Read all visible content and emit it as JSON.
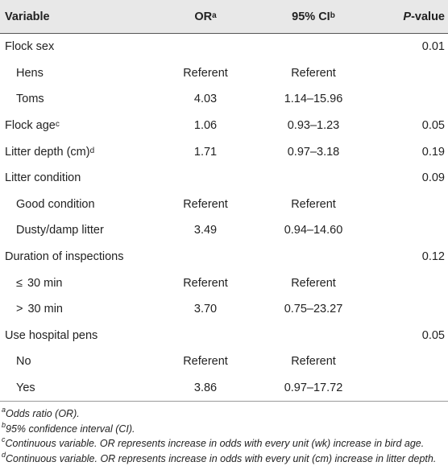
{
  "table": {
    "headers": {
      "variable": "Variable",
      "or": "OR",
      "or_sup": "a",
      "ci": "95% CI",
      "ci_sup": "b",
      "p_italic": "P",
      "p_rest": "-value"
    },
    "rows": [
      {
        "variable": "Flock sex",
        "indent": false,
        "sup": "",
        "or": "",
        "ci": "",
        "p": "0.01"
      },
      {
        "variable": "Hens",
        "indent": true,
        "sup": "",
        "or": "Referent",
        "ci": "Referent",
        "p": ""
      },
      {
        "variable": "Toms",
        "indent": true,
        "sup": "",
        "or": "4.03",
        "ci": "1.14–15.96",
        "p": ""
      },
      {
        "variable": "Flock age",
        "indent": false,
        "sup": "c",
        "or": "1.06",
        "ci": "0.93–1.23",
        "p": "0.05"
      },
      {
        "variable": "Litter depth (cm)",
        "indent": false,
        "sup": "d",
        "or": "1.71",
        "ci": "0.97–3.18",
        "p": "0.19"
      },
      {
        "variable": "Litter condition",
        "indent": false,
        "sup": "",
        "or": "",
        "ci": "",
        "p": "0.09"
      },
      {
        "variable": "Good condition",
        "indent": true,
        "sup": "",
        "or": "Referent",
        "ci": "Referent",
        "p": ""
      },
      {
        "variable": "Dusty/damp litter",
        "indent": true,
        "sup": "",
        "or": "3.49",
        "ci": "0.94–14.60",
        "p": ""
      },
      {
        "variable": "Duration of inspections",
        "indent": false,
        "sup": "",
        "or": "",
        "ci": "",
        "p": "0.12"
      },
      {
        "variable": "30 min",
        "symbol": "≤",
        "indent": true,
        "sup": "",
        "or": "Referent",
        "ci": "Referent",
        "p": ""
      },
      {
        "variable": "30 min",
        "symbol": ">",
        "indent": true,
        "sup": "",
        "or": "3.70",
        "ci": "0.75–23.27",
        "p": ""
      },
      {
        "variable": "Use hospital pens",
        "indent": false,
        "sup": "",
        "or": "",
        "ci": "",
        "p": "0.05"
      },
      {
        "variable": "No",
        "indent": true,
        "sup": "",
        "or": "Referent",
        "ci": "Referent",
        "p": ""
      },
      {
        "variable": "Yes",
        "indent": true,
        "sup": "",
        "or": "3.86",
        "ci": "0.97–17.72",
        "p": ""
      }
    ]
  },
  "footnotes": [
    {
      "sup": "a",
      "text": "Odds ratio (OR)."
    },
    {
      "sup": "b",
      "text": "95% confidence interval (CI)."
    },
    {
      "sup": "c",
      "text": "Continuous variable. OR represents increase in odds with every unit (wk) increase in bird age."
    },
    {
      "sup": "d",
      "text": "Continuous variable. OR represents increase in odds with every unit (cm) increase in litter depth."
    }
  ]
}
